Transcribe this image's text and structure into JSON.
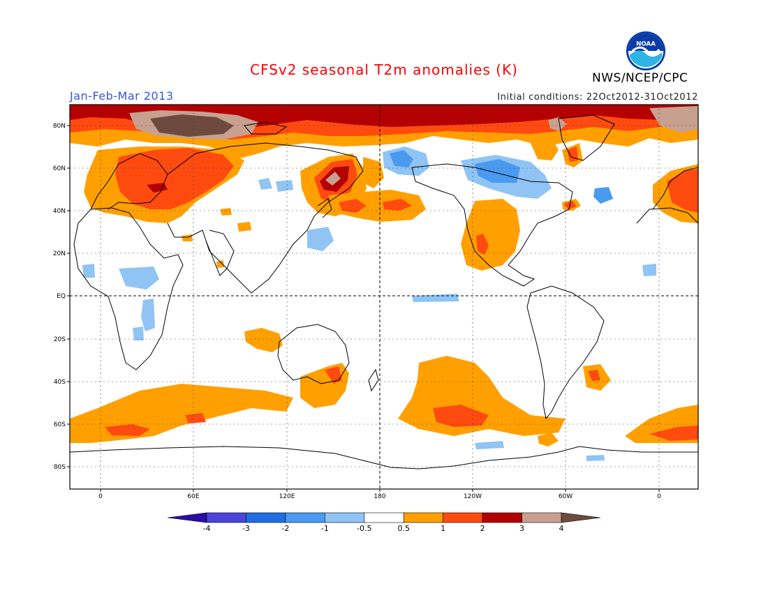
{
  "header": {
    "title": "CFSv2 seasonal T2m anomalies (K)",
    "period": "Jan-Feb-Mar 2013",
    "initial_conditions": "Initial conditions: 22Oct2012-31Oct2012",
    "agency": "NWS/NCEP/CPC",
    "logo_text": "NOAA"
  },
  "map": {
    "projection": "cylindrical equidistant",
    "lat_labels": [
      "80N",
      "60N",
      "40N",
      "20N",
      "EQ",
      "20S",
      "40S",
      "60S",
      "80S"
    ],
    "lon_labels": [
      "0",
      "60E",
      "120E",
      "180",
      "120W",
      "60W",
      "0"
    ]
  },
  "colorbar": {
    "labels": [
      "-4",
      "-3",
      "-2",
      "-1",
      "-0.5",
      "0.5",
      "1",
      "2",
      "3",
      "4"
    ],
    "colors": [
      "#2b0ca8",
      "#4a44d8",
      "#1f6fe0",
      "#4a9af0",
      "#8fc4f5",
      "#ffffff",
      "#ffa000",
      "#ff4a10",
      "#b40000",
      "#c8a090",
      "#6e4a3e"
    ]
  },
  "colors": {
    "c05": "#ffa000",
    "c1": "#ff4a10",
    "c2": "#b40000",
    "c3": "#c8a090",
    "c4": "#6e4a3e",
    "cm05": "#8fc4f5",
    "cm1": "#4a9af0",
    "cm2": "#1f6fe0"
  }
}
